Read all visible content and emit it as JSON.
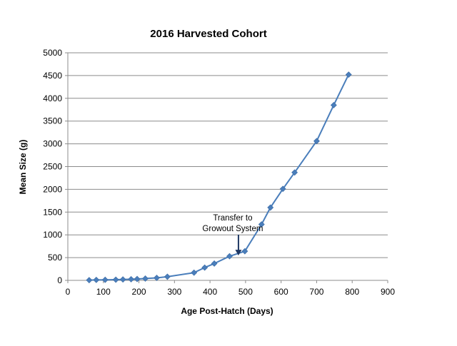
{
  "chart_data": {
    "type": "line",
    "title": "2016 Harvested Cohort",
    "xlabel": "Age Post-Hatch (Days)",
    "ylabel": "Mean Size (g)",
    "xlim": [
      0,
      900
    ],
    "ylim": [
      0,
      5000
    ],
    "x_ticks": [
      0,
      100,
      200,
      300,
      400,
      500,
      600,
      700,
      800,
      900
    ],
    "y_ticks": [
      0,
      500,
      1000,
      1500,
      2000,
      2500,
      3000,
      3500,
      4000,
      4500,
      5000
    ],
    "grid": "horizontal",
    "legend": "none",
    "series": [
      {
        "color": "#4a7ebb",
        "marker": "diamond",
        "x": [
          60,
          80,
          105,
          135,
          155,
          178,
          195,
          218,
          250,
          280,
          355,
          385,
          412,
          455,
          498,
          545,
          570,
          605,
          638,
          700,
          748,
          790
        ],
        "y": [
          5,
          10,
          12,
          15,
          20,
          25,
          30,
          40,
          55,
          80,
          170,
          280,
          370,
          530,
          640,
          1230,
          1600,
          2010,
          2370,
          3060,
          3850,
          4520
        ]
      }
    ],
    "annotations": [
      {
        "lines": [
          "Transfer to",
          "Growout System"
        ],
        "arrow_to": {
          "x": 480,
          "y": 530
        }
      }
    ]
  }
}
